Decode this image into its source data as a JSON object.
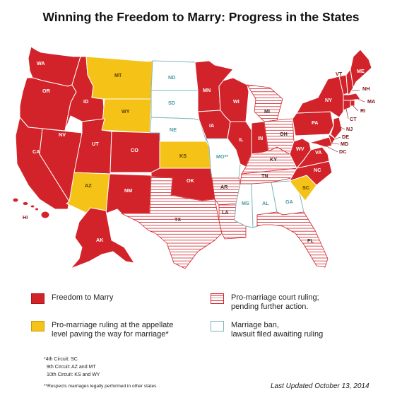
{
  "title": "Winning the Freedom to Marry: Progress in the States",
  "colors": {
    "freedom": "#d2232a",
    "appellate": "#f5c218",
    "court_ruling": "#d2232a",
    "ban": "#7fb8bd"
  },
  "legend": {
    "freedom": "Freedom to Marry",
    "appellate_line1": "Pro-marriage ruling at the appellate",
    "appellate_line2": "level paving the way for marriage*",
    "court_line1": "Pro-marriage court ruling;",
    "court_line2": "pending further action.",
    "ban_line1": "Marriage ban,",
    "ban_line2": "lawsuit filed awaiting ruling"
  },
  "notes": {
    "line1": "*4th Circuit: SC",
    "line2": "9th Circuit: AZ and MT",
    "line3": "10th Circuit: KS and WY"
  },
  "footnote": "**Respects marriages legally performed in other states",
  "updated": "Last Updated October 13, 2014",
  "states": {
    "WA": "WA",
    "OR": "OR",
    "CA": "CA",
    "NV": "NV",
    "ID": "ID",
    "MT": "MT",
    "WY": "WY",
    "UT": "UT",
    "AZ": "AZ",
    "CO": "CO",
    "NM": "NM",
    "ND": "ND",
    "SD": "SD",
    "NE": "NE",
    "KS": "KS",
    "OK": "OK",
    "TX": "TX",
    "MN": "MN",
    "IA": "IA",
    "MO": "MO**",
    "AR": "AR",
    "LA": "LA",
    "WI": "WI",
    "IL": "IL",
    "MS": "MS",
    "MI": "MI",
    "IN": "IN",
    "KY": "KY",
    "TN": "TN",
    "AL": "AL",
    "OH": "OH",
    "GA": "GA",
    "FL": "FL",
    "SC": "SC",
    "NC": "NC",
    "VA": "VA",
    "WV": "WV",
    "PA": "PA",
    "NY": "NY",
    "VT": "VT",
    "NH": "NH",
    "ME": "ME",
    "MA": "MA",
    "RI": "RI",
    "CT": "CT",
    "NJ": "NJ",
    "DE": "DE",
    "MD": "MD",
    "DC": "DC",
    "AK": "AK",
    "HI": "HI"
  }
}
